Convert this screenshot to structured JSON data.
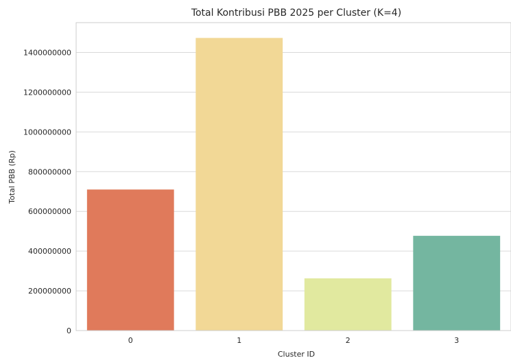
{
  "chart_data": {
    "type": "bar",
    "title": "Total Kontribusi PBB 2025 per Cluster (K=4)",
    "xlabel": "Cluster ID",
    "ylabel": "Total PBB (Rp)",
    "categories": [
      "0",
      "1",
      "2",
      "3"
    ],
    "values": [
      710000000,
      1473000000,
      263000000,
      477000000
    ],
    "colors": [
      "#e07a5b",
      "#f2d896",
      "#e1e99f",
      "#74b6a0"
    ],
    "ylim": [
      0,
      1550000000
    ],
    "yticks": [
      0,
      200000000,
      400000000,
      600000000,
      800000000,
      1000000000,
      1200000000,
      1400000000
    ],
    "ytick_labels": [
      "0",
      "200000000",
      "400000000",
      "600000000",
      "800000000",
      "1000000000",
      "1200000000",
      "1400000000"
    ],
    "grid": "horizontal",
    "legend": "none"
  }
}
